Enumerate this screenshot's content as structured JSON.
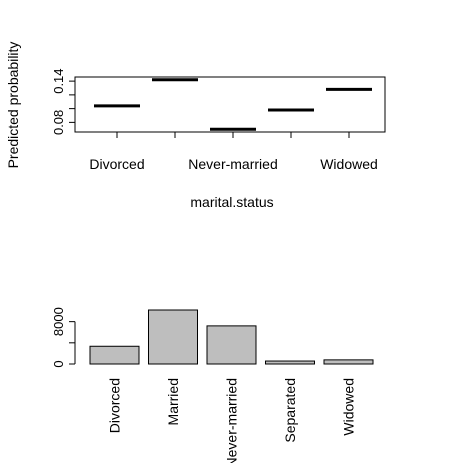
{
  "chart_data": [
    {
      "type": "line",
      "title": "",
      "xlabel": "marital.status",
      "ylabel": "Predicted probability",
      "categories": [
        "Divorced",
        "Married",
        "Never-married",
        "Separated",
        "Widowed"
      ],
      "x_tick_labels_shown": [
        "Divorced",
        "Never-married",
        "Widowed"
      ],
      "values": [
        0.104,
        0.142,
        0.07,
        0.098,
        0.128
      ],
      "ylim": [
        0.066,
        0.146
      ],
      "yticks": [
        0.08,
        0.14
      ],
      "ytick_labels": [
        "0.08",
        "0.14"
      ],
      "grid": false,
      "legend": "none"
    },
    {
      "type": "bar",
      "title": "",
      "xlabel": "",
      "ylabel": "",
      "categories": [
        "Divorced",
        "Married",
        "Never-married",
        "Separated",
        "Widowed"
      ],
      "values": [
        3350,
        10200,
        7200,
        560,
        780
      ],
      "ylim": [
        0,
        10200
      ],
      "yticks": [
        0,
        8000
      ],
      "ytick_labels": [
        "0",
        "8000"
      ],
      "bar_color": "#bebebe",
      "grid": false,
      "legend": "none"
    }
  ]
}
